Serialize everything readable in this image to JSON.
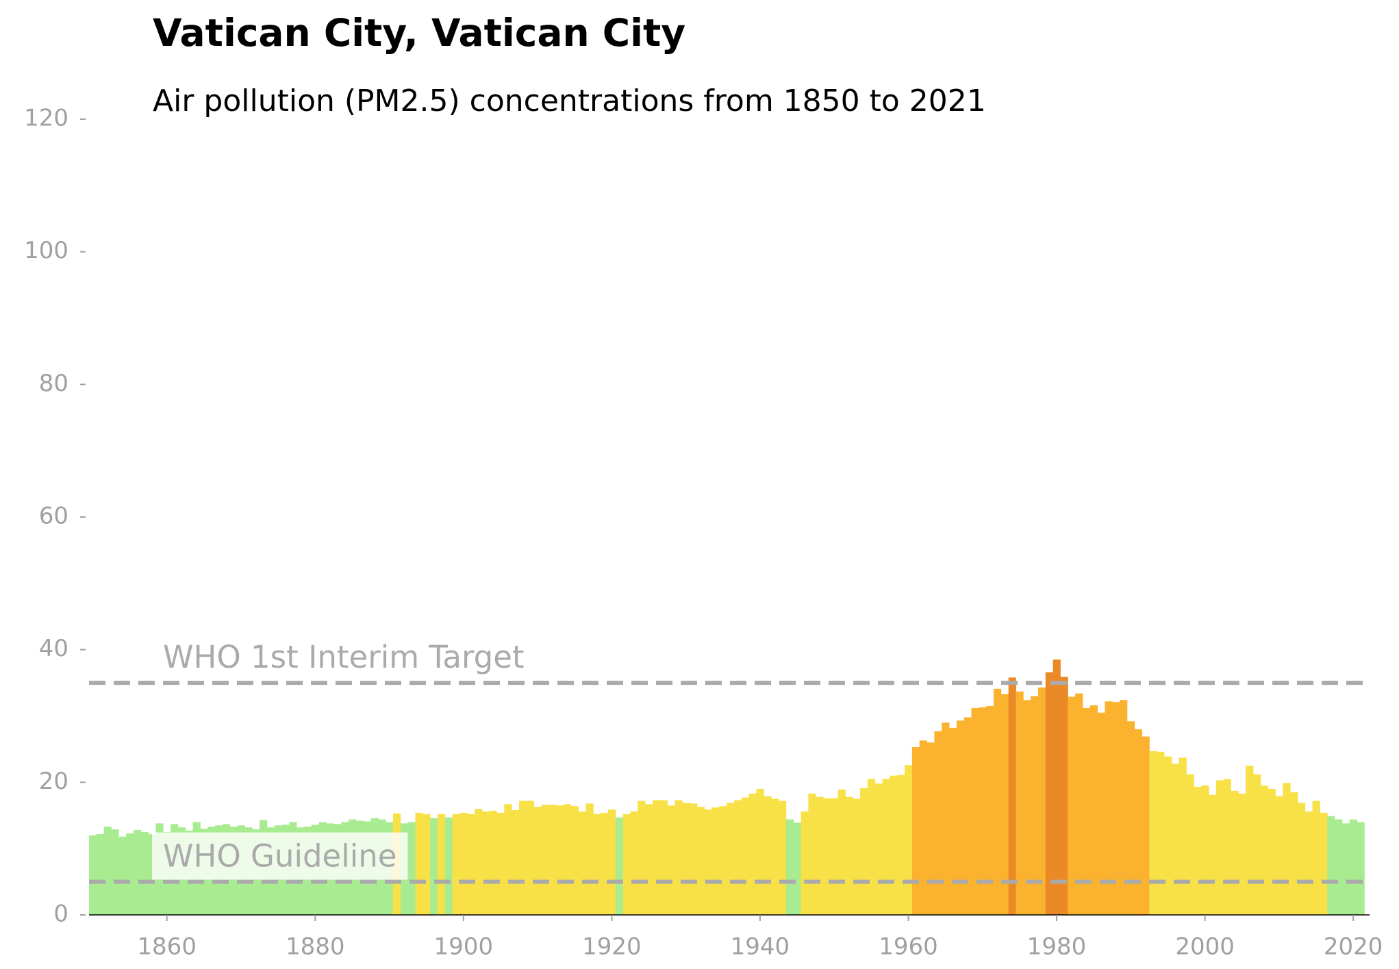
{
  "chart_data": {
    "type": "bar",
    "title": "Vatican City, Vatican City",
    "subtitle": "Air pollution (PM2.5) concentrations from 1850 to 2021",
    "x": [
      1850,
      1851,
      1852,
      1853,
      1854,
      1855,
      1856,
      1857,
      1858,
      1859,
      1860,
      1861,
      1862,
      1863,
      1864,
      1865,
      1866,
      1867,
      1868,
      1869,
      1870,
      1871,
      1872,
      1873,
      1874,
      1875,
      1876,
      1877,
      1878,
      1879,
      1880,
      1881,
      1882,
      1883,
      1884,
      1885,
      1886,
      1887,
      1888,
      1889,
      1890,
      1891,
      1892,
      1893,
      1894,
      1895,
      1896,
      1897,
      1898,
      1899,
      1900,
      1901,
      1902,
      1903,
      1904,
      1905,
      1906,
      1907,
      1908,
      1909,
      1910,
      1911,
      1912,
      1913,
      1914,
      1915,
      1916,
      1917,
      1918,
      1919,
      1920,
      1921,
      1922,
      1923,
      1924,
      1925,
      1926,
      1927,
      1928,
      1929,
      1930,
      1931,
      1932,
      1933,
      1934,
      1935,
      1936,
      1937,
      1938,
      1939,
      1940,
      1941,
      1942,
      1943,
      1944,
      1945,
      1946,
      1947,
      1948,
      1949,
      1950,
      1951,
      1952,
      1953,
      1954,
      1955,
      1956,
      1957,
      1958,
      1959,
      1960,
      1961,
      1962,
      1963,
      1964,
      1965,
      1966,
      1967,
      1968,
      1969,
      1970,
      1971,
      1972,
      1973,
      1974,
      1975,
      1976,
      1977,
      1978,
      1979,
      1980,
      1981,
      1982,
      1983,
      1984,
      1985,
      1986,
      1987,
      1988,
      1989,
      1990,
      1991,
      1992,
      1993,
      1994,
      1995,
      1996,
      1997,
      1998,
      1999,
      2000,
      2001,
      2002,
      2003,
      2004,
      2005,
      2006,
      2007,
      2008,
      2009,
      2010,
      2011,
      2012,
      2013,
      2014,
      2015,
      2016,
      2017,
      2018,
      2019,
      2020,
      2021
    ],
    "values": [
      12.0,
      12.2,
      13.3,
      12.9,
      11.8,
      12.3,
      12.8,
      12.5,
      12.2,
      13.8,
      12.5,
      13.7,
      13.2,
      12.7,
      14.0,
      13.0,
      13.3,
      13.5,
      13.7,
      13.3,
      13.5,
      13.2,
      12.9,
      14.3,
      13.2,
      13.5,
      13.6,
      14.0,
      13.2,
      13.3,
      13.6,
      14.0,
      13.8,
      13.7,
      14.0,
      14.4,
      14.2,
      14.1,
      14.6,
      14.4,
      14.0,
      15.3,
      13.8,
      14.0,
      15.4,
      15.2,
      14.6,
      15.2,
      14.7,
      15.2,
      15.4,
      15.2,
      16.0,
      15.6,
      15.7,
      15.4,
      16.7,
      15.8,
      17.2,
      17.2,
      16.3,
      16.6,
      16.6,
      16.5,
      16.7,
      16.4,
      15.6,
      16.8,
      15.2,
      15.4,
      15.9,
      14.7,
      15.2,
      15.6,
      17.2,
      16.7,
      17.3,
      17.3,
      16.5,
      17.3,
      16.9,
      16.8,
      16.3,
      15.9,
      16.2,
      16.4,
      16.9,
      17.3,
      17.7,
      18.3,
      19.0,
      17.9,
      17.5,
      17.2,
      14.4,
      13.9,
      15.6,
      18.3,
      17.8,
      17.6,
      17.6,
      18.9,
      17.8,
      17.5,
      19.1,
      20.5,
      19.8,
      20.5,
      21.0,
      21.1,
      22.6,
      25.3,
      26.3,
      26.0,
      27.7,
      29.0,
      28.2,
      29.3,
      29.8,
      31.2,
      31.3,
      31.5,
      34.1,
      33.3,
      35.8,
      33.7,
      32.4,
      33.0,
      34.3,
      36.6,
      38.5,
      35.9,
      32.9,
      33.4,
      31.2,
      31.6,
      30.5,
      32.2,
      32.1,
      32.4,
      29.2,
      28.0,
      26.9,
      24.7,
      24.6,
      23.9,
      22.8,
      23.7,
      21.2,
      19.3,
      19.5,
      18.1,
      20.3,
      20.5,
      18.7,
      18.3,
      22.5,
      21.2,
      19.5,
      19.0,
      17.9,
      19.9,
      18.5,
      16.9,
      15.6,
      17.2,
      15.4,
      14.9,
      14.4,
      13.8,
      14.4,
      14.0
    ],
    "color_scale": {
      "thresholds": [
        15,
        25,
        35
      ],
      "colors": [
        "#a8eb91",
        "#f8e047",
        "#fbb32f",
        "#e98a26"
      ]
    },
    "reference_lines": [
      {
        "value": 35,
        "label": "WHO 1st Interim Target"
      },
      {
        "value": 5,
        "label": "WHO Guideline"
      }
    ],
    "reference_color": "#aaaaaa",
    "xlim": [
      1849.5,
      2022.2
    ],
    "xticks": [
      1860,
      1880,
      1900,
      1920,
      1940,
      1960,
      1980,
      2000,
      2020
    ],
    "ylim": [
      0,
      120
    ],
    "yticks": [
      0,
      20,
      40,
      60,
      80,
      100,
      120
    ]
  }
}
